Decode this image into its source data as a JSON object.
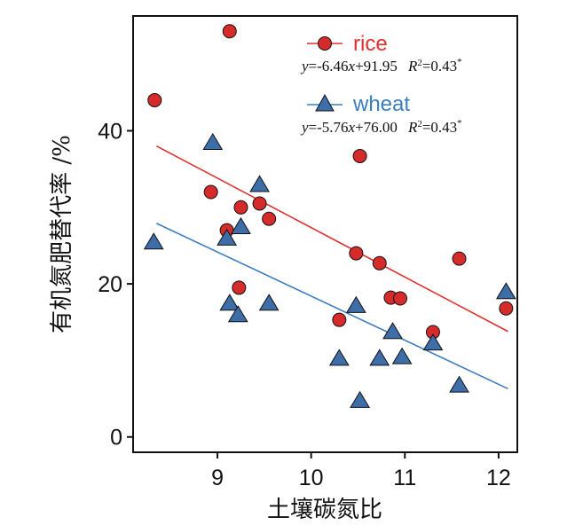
{
  "chart_data": {
    "type": "scatter",
    "xlabel": "土壤碳氮比",
    "ylabel": "有机氮肥替代率 /%",
    "xlim": [
      8.1,
      12.2
    ],
    "ylim": [
      -2,
      55
    ],
    "xticks": [
      9,
      10,
      11,
      12
    ],
    "yticks": [
      0,
      20,
      40
    ],
    "grid": false,
    "legend_position": "top-right",
    "series": [
      {
        "name": "rice",
        "marker": "circle",
        "color": "#e03030",
        "marker_fill": "#d62b2b",
        "equation": {
          "y": "y",
          "lhs": "=-6.46",
          "x": "x",
          "rhs": "+91.95",
          "R": "R",
          "sup2": "2",
          "r2": "=0.43",
          "star": "*"
        },
        "fit": {
          "slope": -6.46,
          "intercept": 91.95,
          "x_range": [
            8.35,
            12.1
          ]
        },
        "points": [
          {
            "x": 8.33,
            "y": 44.0
          },
          {
            "x": 9.13,
            "y": 53.0
          },
          {
            "x": 8.93,
            "y": 32.0
          },
          {
            "x": 9.1,
            "y": 27.0
          },
          {
            "x": 9.25,
            "y": 30.0
          },
          {
            "x": 9.23,
            "y": 19.5
          },
          {
            "x": 9.45,
            "y": 30.5
          },
          {
            "x": 9.55,
            "y": 28.5
          },
          {
            "x": 10.3,
            "y": 15.3
          },
          {
            "x": 10.48,
            "y": 24.0
          },
          {
            "x": 10.52,
            "y": 36.7
          },
          {
            "x": 10.73,
            "y": 22.7
          },
          {
            "x": 10.85,
            "y": 18.2
          },
          {
            "x": 10.95,
            "y": 18.1
          },
          {
            "x": 11.3,
            "y": 13.7
          },
          {
            "x": 11.58,
            "y": 23.3
          },
          {
            "x": 12.08,
            "y": 16.8
          }
        ]
      },
      {
        "name": "wheat",
        "marker": "triangle",
        "color": "#3b7ec0",
        "marker_fill": "#3e6ea8",
        "equation": {
          "y": "y",
          "lhs": "=-5.76",
          "x": "x",
          "rhs": "+76.00",
          "R": "R",
          "sup2": "2",
          "r2": "=0.43",
          "star": "*"
        },
        "fit": {
          "slope": -5.76,
          "intercept": 76.0,
          "x_range": [
            8.35,
            12.1
          ]
        },
        "points": [
          {
            "x": 8.32,
            "y": 25.5
          },
          {
            "x": 8.95,
            "y": 38.5
          },
          {
            "x": 9.1,
            "y": 26.0
          },
          {
            "x": 9.13,
            "y": 17.5
          },
          {
            "x": 9.22,
            "y": 16.0
          },
          {
            "x": 9.25,
            "y": 27.5
          },
          {
            "x": 9.45,
            "y": 33.0
          },
          {
            "x": 9.55,
            "y": 17.5
          },
          {
            "x": 10.3,
            "y": 10.3
          },
          {
            "x": 10.48,
            "y": 17.2
          },
          {
            "x": 10.52,
            "y": 4.8
          },
          {
            "x": 10.73,
            "y": 10.3
          },
          {
            "x": 10.87,
            "y": 13.8
          },
          {
            "x": 10.97,
            "y": 10.5
          },
          {
            "x": 11.3,
            "y": 12.3
          },
          {
            "x": 11.58,
            "y": 6.8
          },
          {
            "x": 12.08,
            "y": 19.0
          }
        ]
      }
    ]
  }
}
